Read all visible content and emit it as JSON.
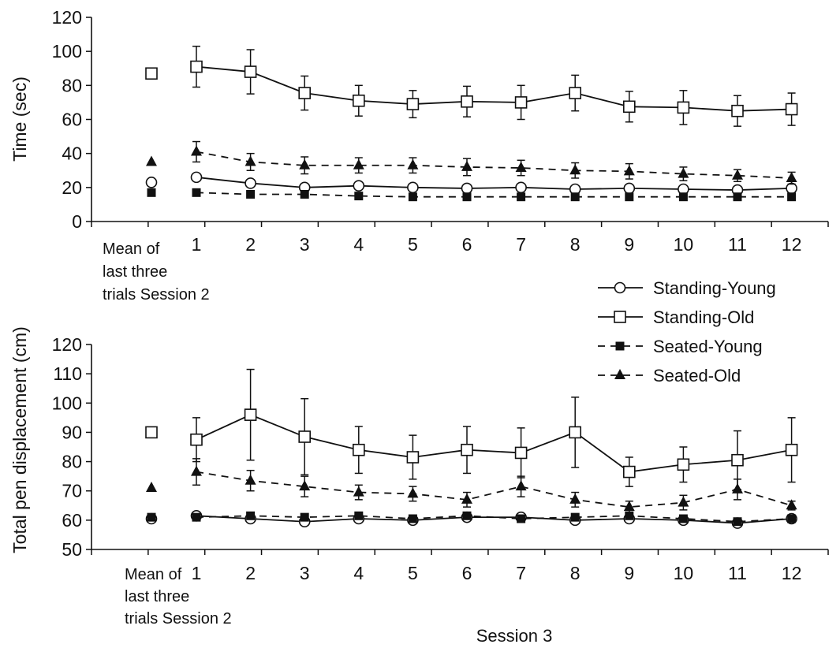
{
  "chart_data": [
    {
      "type": "line",
      "ylabel": "Time (sec)",
      "ylim": [
        0,
        120
      ],
      "yticks": [
        0,
        20,
        40,
        60,
        80,
        100,
        120
      ],
      "categories": [
        "1",
        "2",
        "3",
        "4",
        "5",
        "6",
        "7",
        "8",
        "9",
        "10",
        "11",
        "12"
      ],
      "baseline_label": [
        "Mean of",
        "last three",
        "trials Session 2"
      ],
      "series": [
        {
          "name": "Standing-Young",
          "baseline": 23,
          "values": [
            26,
            22.5,
            20,
            21,
            20,
            19.5,
            20,
            19,
            19.5,
            19,
            18.5,
            19.5
          ],
          "errors": []
        },
        {
          "name": "Standing-Old",
          "baseline": 87,
          "values": [
            91,
            88,
            75.5,
            71,
            69,
            70.5,
            70,
            75.5,
            67.5,
            67,
            65,
            66
          ],
          "errors": [
            12,
            13,
            10,
            9,
            8,
            9,
            10,
            10.5,
            9,
            10,
            9,
            9.5
          ]
        },
        {
          "name": "Seated-Young",
          "baseline": 17,
          "values": [
            17,
            16,
            16,
            15,
            14.5,
            14.5,
            14.5,
            14.5,
            14.5,
            14.5,
            14.5,
            14.5
          ],
          "errors": []
        },
        {
          "name": "Seated-Old",
          "baseline": 35,
          "values": [
            41,
            35,
            33,
            33,
            33,
            32,
            31.5,
            30,
            29.5,
            28,
            27,
            25.5
          ],
          "errors": [
            6,
            5,
            5,
            4.5,
            4.5,
            5,
            4.5,
            4.5,
            4.5,
            4,
            3.5,
            3.5
          ]
        }
      ]
    },
    {
      "type": "line",
      "ylabel": "Total pen displacement  (cm)",
      "xlabel": "Session  3",
      "ylim": [
        50,
        120
      ],
      "yticks": [
        50,
        60,
        70,
        80,
        90,
        100,
        110,
        120
      ],
      "categories": [
        "1",
        "2",
        "3",
        "4",
        "5",
        "6",
        "7",
        "8",
        "9",
        "10",
        "11",
        "12"
      ],
      "baseline_label": [
        "Mean of",
        "last three",
        "trials Session 2"
      ],
      "series": [
        {
          "name": "Standing-Young",
          "baseline": 60.5,
          "values": [
            61.5,
            60.5,
            59.5,
            60.5,
            60,
            61,
            61,
            60,
            60.5,
            60,
            59,
            60.5
          ],
          "errors": []
        },
        {
          "name": "Standing-Old",
          "baseline": 90,
          "values": [
            87.5,
            96,
            88.5,
            84,
            81.5,
            84,
            83,
            90,
            76.5,
            79,
            80.5,
            84
          ],
          "errors": [
            7.5,
            15.5,
            13,
            8,
            7.5,
            8,
            8.5,
            12,
            5,
            6,
            10,
            11
          ]
        },
        {
          "name": "Seated-Young",
          "baseline": 61,
          "values": [
            61,
            61.5,
            61,
            61.5,
            60.5,
            61.5,
            60.5,
            61,
            61.5,
            60.5,
            59.5,
            60.5
          ],
          "errors": []
        },
        {
          "name": "Seated-Old",
          "baseline": 71,
          "values": [
            76.5,
            73.5,
            71.5,
            69.5,
            69,
            67,
            71.5,
            67,
            64.5,
            66,
            70.5,
            65
          ],
          "errors": [
            4.5,
            3.5,
            3.5,
            2.5,
            2.5,
            2.5,
            3.5,
            2.5,
            2,
            2.5,
            3.5,
            1.5
          ]
        }
      ]
    }
  ],
  "legend": {
    "placement": "right",
    "items": [
      {
        "label": "Standing-Young",
        "marker": "circle-open",
        "line": "solid"
      },
      {
        "label": "Standing-Old",
        "marker": "square-open",
        "line": "solid"
      },
      {
        "label": "Seated-Young",
        "marker": "square-filled",
        "line": "dashed"
      },
      {
        "label": "Seated-Old",
        "marker": "triangle-filled",
        "line": "dashed"
      }
    ]
  }
}
